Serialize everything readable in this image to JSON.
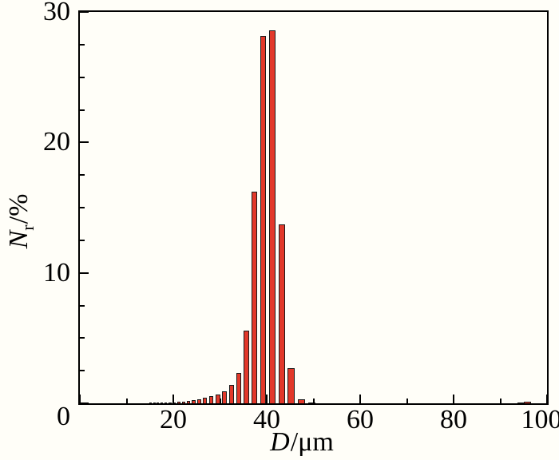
{
  "figure": {
    "background": "#fffef8"
  },
  "chart_data": {
    "type": "bar",
    "xlabel": "D/μm",
    "ylabel": "Nr/%",
    "xlabel_parts": {
      "symbol": "D",
      "unit": "/μm"
    },
    "ylabel_parts": {
      "symbol": "N",
      "subscript": "r",
      "unit": "/%"
    },
    "xlim": [
      0,
      100
    ],
    "ylim": [
      0,
      30
    ],
    "grid": false,
    "axis_color": "#000000",
    "bar_fill": "#e2382a",
    "bar_stroke": "#1a1a1a",
    "x_major_ticks": [
      0,
      20,
      40,
      60,
      80,
      100
    ],
    "x_minor_ticks": [
      10,
      30,
      50,
      70,
      90
    ],
    "y_major_ticks": [
      0,
      10,
      20,
      30
    ],
    "y_minor_ticks": [
      2.5,
      5,
      7.5,
      12.5,
      15,
      17.5,
      22.5,
      25,
      27.5
    ],
    "x_tick_labels": [
      {
        "v": 20,
        "label": "20",
        "dx": 0
      },
      {
        "v": 40,
        "label": "40",
        "dx": 0
      },
      {
        "v": 60,
        "label": "60",
        "dx": 0
      },
      {
        "v": 80,
        "label": "80",
        "dx": 0
      },
      {
        "v": 100,
        "label": "100",
        "dx": -7
      }
    ],
    "y_tick_labels": [
      {
        "v": 10,
        "label": "10"
      },
      {
        "v": 20,
        "label": "20"
      },
      {
        "v": 30,
        "label": "30"
      }
    ],
    "corner_tick_label": "0",
    "bars": [
      {
        "d": 15.1,
        "v": 0.04
      },
      {
        "d": 15.9,
        "v": 0.04
      },
      {
        "d": 16.7,
        "v": 0.05
      },
      {
        "d": 17.5,
        "v": 0.05
      },
      {
        "d": 18.4,
        "v": 0.06
      },
      {
        "d": 19.3,
        "v": 0.07
      },
      {
        "d": 20.2,
        "v": 0.08
      },
      {
        "d": 21.2,
        "v": 0.1
      },
      {
        "d": 22.2,
        "v": 0.13
      },
      {
        "d": 23.3,
        "v": 0.17
      },
      {
        "d": 24.4,
        "v": 0.24
      },
      {
        "d": 25.6,
        "v": 0.32
      },
      {
        "d": 26.8,
        "v": 0.41
      },
      {
        "d": 28.1,
        "v": 0.55
      },
      {
        "d": 29.5,
        "v": 0.7
      },
      {
        "d": 30.9,
        "v": 0.9
      },
      {
        "d": 32.4,
        "v": 1.4
      },
      {
        "d": 34.0,
        "v": 2.35
      },
      {
        "d": 35.7,
        "v": 5.6
      },
      {
        "d": 37.4,
        "v": 16.2
      },
      {
        "d": 39.3,
        "v": 28.15
      },
      {
        "d": 41.2,
        "v": 28.6
      },
      {
        "d": 43.2,
        "v": 13.7
      },
      {
        "d": 45.2,
        "v": 2.7
      },
      {
        "d": 47.4,
        "v": 0.32
      },
      {
        "d": 49.7,
        "v": 0.08
      },
      {
        "d": 94.5,
        "v": 0.05
      },
      {
        "d": 95.8,
        "v": 0.12
      }
    ]
  }
}
